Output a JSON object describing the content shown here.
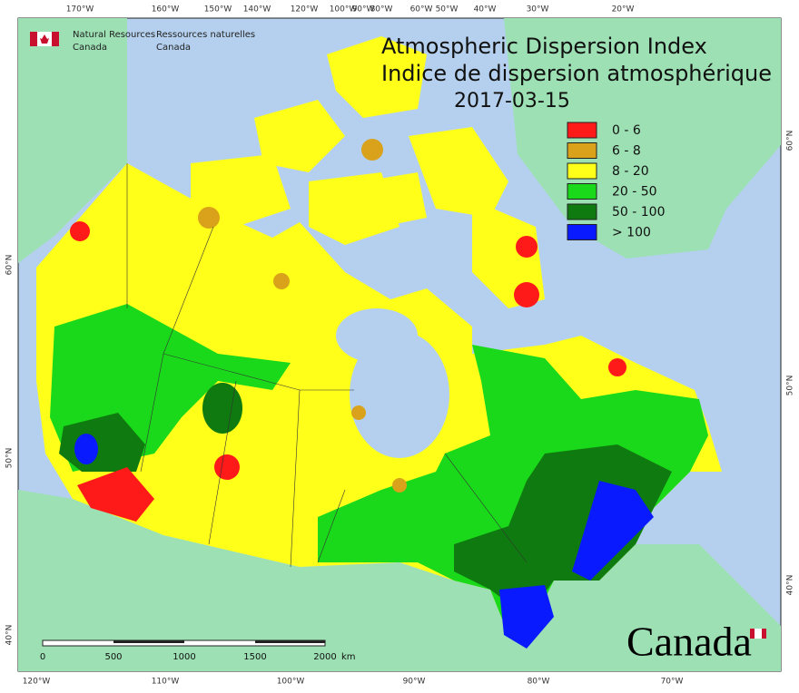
{
  "header": {
    "agency_en": [
      "Natural Resources",
      "Canada"
    ],
    "agency_fr": [
      "Ressources naturelles",
      "Canada"
    ]
  },
  "title": [
    "Atmospheric Dispersion Index",
    "Indice de dispersion atmosphérique"
  ],
  "date": "2017-03-15",
  "legend": {
    "items": [
      {
        "label": "0 - 6",
        "color": "#ff1a1a"
      },
      {
        "label": "6 - 8",
        "color": "#d9a21a"
      },
      {
        "label": "8 - 20",
        "color": "#ffff1a"
      },
      {
        "label": "20 - 50",
        "color": "#1ad91a"
      },
      {
        "label": "50 - 100",
        "color": "#0f7a0f"
      },
      {
        "label": "> 100",
        "color": "#0a1aff"
      }
    ]
  },
  "graticule": {
    "top": [
      "170°W",
      "160°W",
      "150°W",
      "140°W",
      "120°W",
      "100°W",
      "90°W",
      "80°W",
      "60°W",
      "50°W",
      "40°W",
      "30°W",
      "20°W"
    ],
    "bottom": [
      "120°W",
      "110°W",
      "100°W",
      "90°W",
      "80°W",
      "70°W"
    ],
    "left": [
      "60°N",
      "50°N",
      "40°N"
    ],
    "right": [
      "60°N",
      "50°N",
      "40°N"
    ]
  },
  "scale_bar": {
    "ticks": [
      "0",
      "500",
      "1000",
      "1500",
      "2000"
    ],
    "unit": "km"
  },
  "wordmark": "Canada"
}
